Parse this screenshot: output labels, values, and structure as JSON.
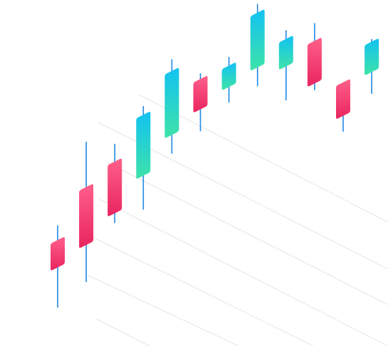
{
  "chart_data": {
    "type": "candlestick",
    "projection": "isometric",
    "grid": true,
    "title": "",
    "xlabel": "",
    "ylabel": "",
    "ylim": [
      0,
      100
    ],
    "candles": [
      {
        "open": 12,
        "close": 21,
        "high": 27,
        "low": 0,
        "direction": "down"
      },
      {
        "open": 19,
        "close": 38,
        "high": 54,
        "low": 8,
        "direction": "down"
      },
      {
        "open": 29,
        "close": 46,
        "high": 53,
        "low": 27,
        "direction": "down"
      },
      {
        "open": 41,
        "close": 61,
        "high": 65,
        "low": 31,
        "direction": "up"
      },
      {
        "open": 54,
        "close": 75,
        "high": 80,
        "low": 49,
        "direction": "up"
      },
      {
        "open": 62,
        "close": 72,
        "high": 75,
        "low": 56,
        "direction": "down"
      },
      {
        "open": 69,
        "close": 76,
        "high": 80,
        "low": 65,
        "direction": "up"
      },
      {
        "open": 75,
        "close": 93,
        "high": 97,
        "low": 70,
        "direction": "up"
      },
      {
        "open": 75,
        "close": 84,
        "high": 88,
        "low": 65,
        "direction": "up"
      },
      {
        "open": 69,
        "close": 83,
        "high": 90,
        "low": 68,
        "direction": "down"
      },
      {
        "open": 58,
        "close": 69,
        "high": 70,
        "low": 54,
        "direction": "down"
      },
      {
        "open": 72,
        "close": 82,
        "high": 84,
        "low": 66,
        "direction": "up"
      }
    ],
    "colors": {
      "up_top": "#12c2f2",
      "up_bottom": "#3ee3a8",
      "down_top": "#ff5f8a",
      "down_bottom": "#e8255f",
      "wick": "#1e88e5",
      "grid": "#e6e6e6"
    }
  }
}
